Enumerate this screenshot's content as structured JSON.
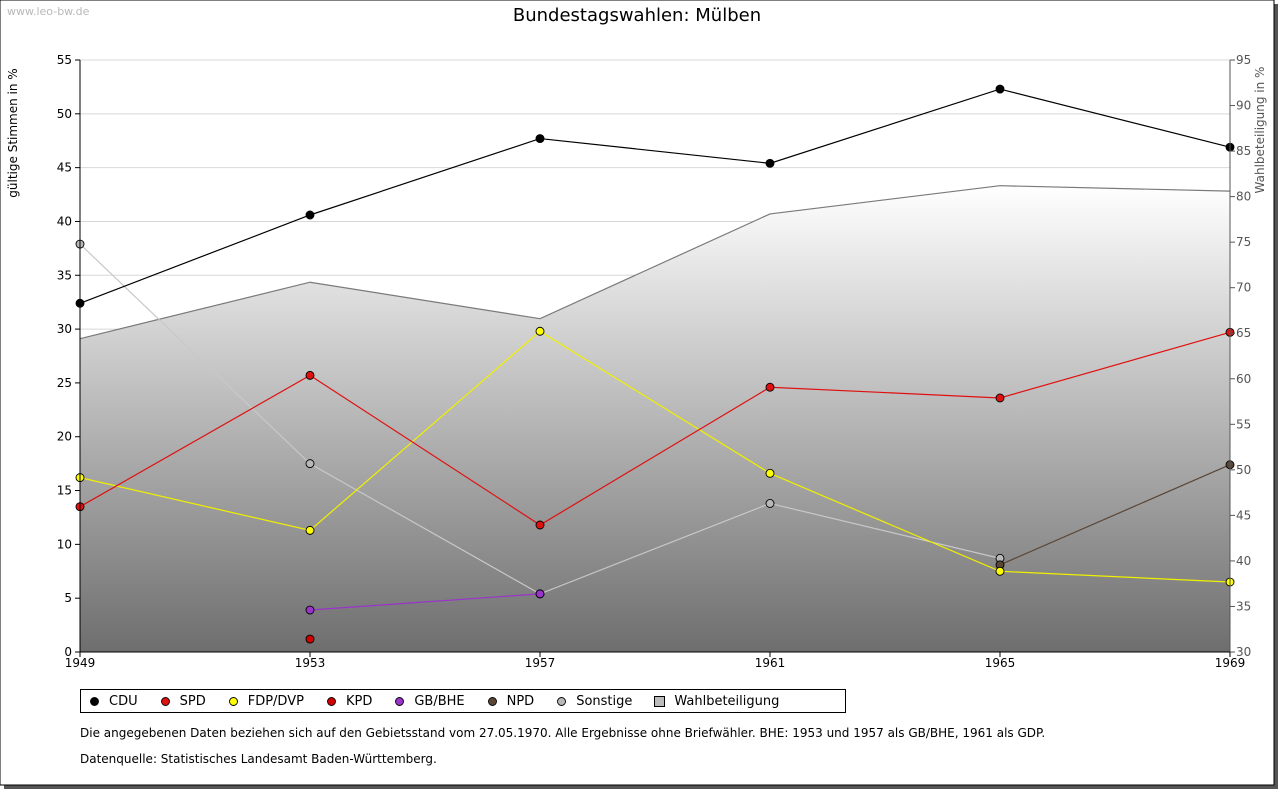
{
  "watermark": "www.leo-bw.de",
  "notes": {
    "text": "Die angegebenen Daten beziehen sich auf den Gebietsstand vom 27.05.1970. Alle Ergebnisse ohne Briefwähler. BHE: 1953 und 1957 als GB/BHE, 1961 als GDP.",
    "source": "Datenquelle: Statistisches Landesamt Baden-Württemberg."
  },
  "colors": {
    "grid": "#d8d8d8",
    "area_top": "#ffffff",
    "area_bottom": "#6e6e6e",
    "area_line": "#7a7a7a"
  },
  "chart_data": {
    "type": "line",
    "title": "Bundestagswahlen: Mülben",
    "xlabel": "",
    "ylabel": "gültige Stimmen in %",
    "y2label": "Wahlbeteiligung in %",
    "x": [
      1949,
      1953,
      1957,
      1961,
      1965,
      1969
    ],
    "ylim": [
      0,
      55
    ],
    "y2lim": [
      30,
      95
    ],
    "yticks": [
      0,
      5,
      10,
      15,
      20,
      25,
      30,
      35,
      40,
      45,
      50,
      55
    ],
    "y2ticks": [
      30,
      35,
      40,
      45,
      50,
      55,
      60,
      65,
      70,
      75,
      80,
      85,
      90,
      95
    ],
    "legend_position": "bottom",
    "series": [
      {
        "name": "CDU",
        "color": "#000000",
        "marker": "#000000",
        "values": [
          32.4,
          40.6,
          47.7,
          45.4,
          52.3,
          46.9
        ]
      },
      {
        "name": "SPD",
        "color": "#e01010",
        "marker": "#e01010",
        "values": [
          13.5,
          25.7,
          11.8,
          24.6,
          23.6,
          29.7
        ]
      },
      {
        "name": "FDP/DVP",
        "color": "#f0f000",
        "marker": "#ffff00",
        "values": [
          16.2,
          11.3,
          29.8,
          16.6,
          7.5,
          6.5
        ]
      },
      {
        "name": "KPD",
        "color": "#e01010",
        "marker": "#d00000",
        "values": [
          null,
          1.2,
          null,
          null,
          null,
          null
        ]
      },
      {
        "name": "GB/BHE",
        "color": "#9933cc",
        "marker": "#9933cc",
        "values": [
          null,
          3.9,
          5.4,
          null,
          null,
          null
        ]
      },
      {
        "name": "NPD",
        "color": "#5a4636",
        "marker": "#5a4636",
        "values": [
          null,
          null,
          null,
          null,
          8.1,
          17.4
        ]
      },
      {
        "name": "Sonstige",
        "color": "#c8c8c8",
        "marker": "#b8b8b8",
        "values": [
          37.9,
          17.5,
          5.4,
          13.8,
          8.7,
          null
        ]
      }
    ],
    "area_series": {
      "name": "Wahlbeteiligung",
      "axis": "right",
      "values": [
        64.4,
        70.6,
        66.6,
        78.1,
        81.2,
        80.6
      ]
    }
  }
}
